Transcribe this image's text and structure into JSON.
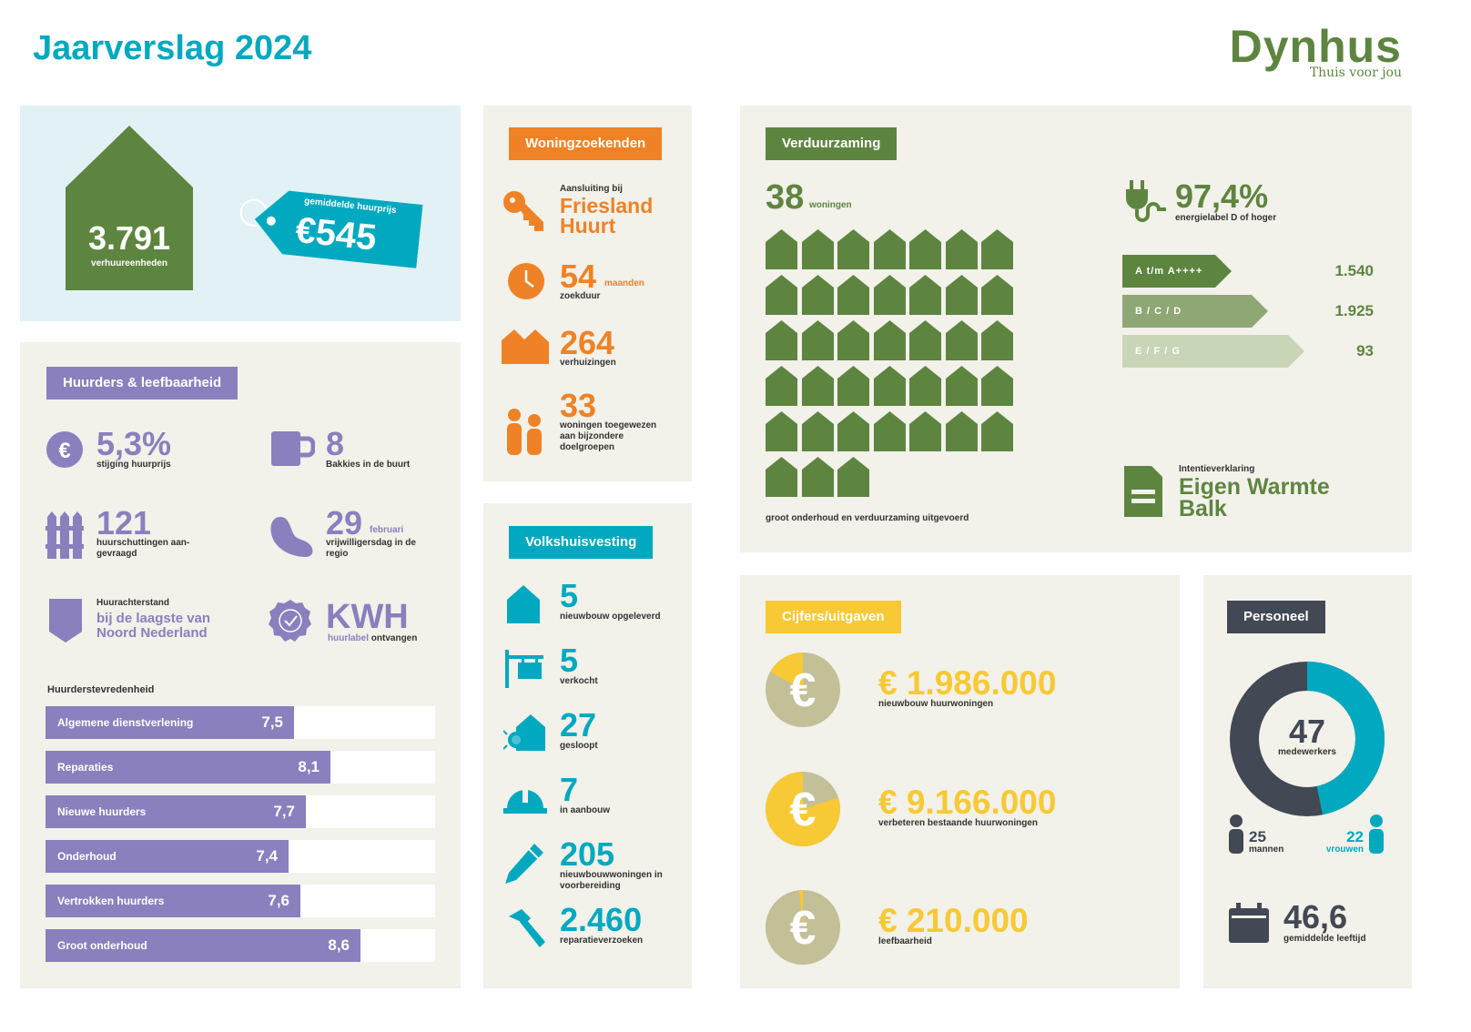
{
  "header": {
    "title": "Jaarverslag 2024",
    "logo_text": "Dynhus",
    "logo_tagline": "Thuis voor jou"
  },
  "colors": {
    "green": "#5e8540",
    "teal": "#00a9bf",
    "orange": "#ef8226",
    "purple": "#8a80be",
    "yellow": "#f7c934",
    "dark": "#424854",
    "panel": "#f2f1ea",
    "lightblue": "#e2f1f5"
  },
  "summary": {
    "units_value": "3.791",
    "units_label": "verhuureenheden",
    "tag_label": "gemiddelde huurprijs",
    "tag_value": "€545"
  },
  "tenants": {
    "title": "Huurders & leefbaarheid",
    "rent_increase_value": "5,3%",
    "rent_increase_label": "stijging huurprijs",
    "coffee_value": "8",
    "coffee_label": "Bakkies in de buurt",
    "fences_value": "121",
    "fences_label": "huurschuttingen aan-gevraagd",
    "volunteer_value": "29",
    "volunteer_unit": "februari",
    "volunteer_label": "vrijwilligersdag in de regio",
    "arrears_small": "Huurachterstand",
    "arrears_text": "bij de laagste van Noord Nederland",
    "kwh_value": "KWH",
    "kwh_label_a": "huurlabel",
    "kwh_label_b": "ontvangen",
    "satisfaction_title": "Huurderstevredenheid",
    "satisfaction": [
      {
        "label": "Algemene dienstverlening",
        "value": "7,5",
        "score": 7.5
      },
      {
        "label": "Reparaties",
        "value": "8,1",
        "score": 8.1
      },
      {
        "label": "Nieuwe huurders",
        "value": "7,7",
        "score": 7.7
      },
      {
        "label": "Onderhoud",
        "value": "7,4",
        "score": 7.4
      },
      {
        "label": "Vertrokken huurders",
        "value": "7,6",
        "score": 7.6
      },
      {
        "label": "Groot onderhoud",
        "value": "8,6",
        "score": 8.6
      }
    ]
  },
  "seekers": {
    "title": "Woningzoekenden",
    "membership_small": "Aansluiting bij",
    "membership_text": "Friesland Huurt",
    "wait_value": "54",
    "wait_unit": "maanden",
    "wait_label": "zoekduur",
    "moves_value": "264",
    "moves_label": "verhuizingen",
    "assigned_value": "33",
    "assigned_label": "woningen toegewezen aan bijzondere doelgroepen"
  },
  "housing": {
    "title": "Volkshuisvesting",
    "items": [
      {
        "value": "5",
        "label": "nieuwbouw opgeleverd",
        "icon": "house-icon"
      },
      {
        "value": "5",
        "label": "verkocht",
        "icon": "for-sale-sign-icon"
      },
      {
        "value": "27",
        "label": "gesloopt",
        "icon": "demolition-icon"
      },
      {
        "value": "7",
        "label": "in aanbouw",
        "icon": "hard-hat-icon"
      },
      {
        "value": "205",
        "label": "nieuwbouwwoningen in voorbereiding",
        "icon": "pencil-icon"
      },
      {
        "value": "2.460",
        "label": "reparatieverzoeken",
        "icon": "hammer-icon"
      }
    ]
  },
  "sustain": {
    "title": "Verduurzaming",
    "homes_value": "38",
    "homes_unit": "woningen",
    "homes_count": 38,
    "homes_caption": "groot onderhoud en verduurzaming uitgevoerd",
    "energy_value": "97,4%",
    "energy_label": "energielabel D of hoger",
    "labels": [
      {
        "label": "A t/m A++++",
        "value": "1.540",
        "color": "#5e8540"
      },
      {
        "label": "B / C / D",
        "value": "1.925",
        "color": "#8ea774"
      },
      {
        "label": "E / F / G",
        "value": "93",
        "color": "#c8d5b6"
      }
    ],
    "intent_small": "Intentieverklaring",
    "intent_text": "Eigen Warmte Balk"
  },
  "figures": {
    "title": "Cijfers/uitgaven",
    "items": [
      {
        "amount": "€ 1.986.000",
        "label": "nieuwbouw huurwoningen",
        "share": 0.17
      },
      {
        "amount": "€ 9.166.000",
        "label": "verbeteren bestaande huurwoningen",
        "share": 0.8
      },
      {
        "amount": "€ 210.000",
        "label": "leefbaarheid",
        "share": 0.017
      }
    ]
  },
  "staff": {
    "title": "Personeel",
    "total_value": "47",
    "total_label": "medewerkers",
    "men_value": "25",
    "men_label": "mannen",
    "women_value": "22",
    "women_label": "vrouwen",
    "women_share": 0.468,
    "age_value": "46,6",
    "age_label": "gemiddelde leeftijd"
  }
}
